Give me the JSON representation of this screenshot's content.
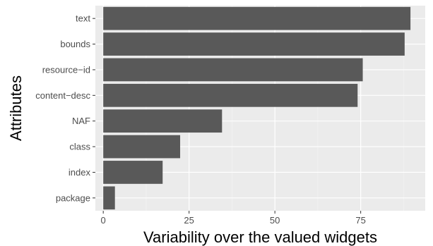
{
  "chart_data": {
    "type": "bar",
    "orientation": "horizontal",
    "categories": [
      "text",
      "bounds",
      "resource−id",
      "content−desc",
      "NAF",
      "class",
      "index",
      "package"
    ],
    "values": [
      89.5,
      87.8,
      75.6,
      74.1,
      34.6,
      22.4,
      17.3,
      3.4
    ],
    "xlabel": "Variability over the valued widgets",
    "ylabel": "Attributes",
    "xlim": [
      -2.3,
      93.8
    ],
    "xticks": [
      0,
      25,
      50,
      75
    ],
    "grid": true,
    "legend": "none",
    "colors": {
      "panel_background": "#ebebeb",
      "grid_major": "#ffffff",
      "grid_minor": "#f5f5f5",
      "bar_fill": "#595959",
      "tick_text": "#4d4d4d",
      "tick_mark": "#333333"
    }
  }
}
